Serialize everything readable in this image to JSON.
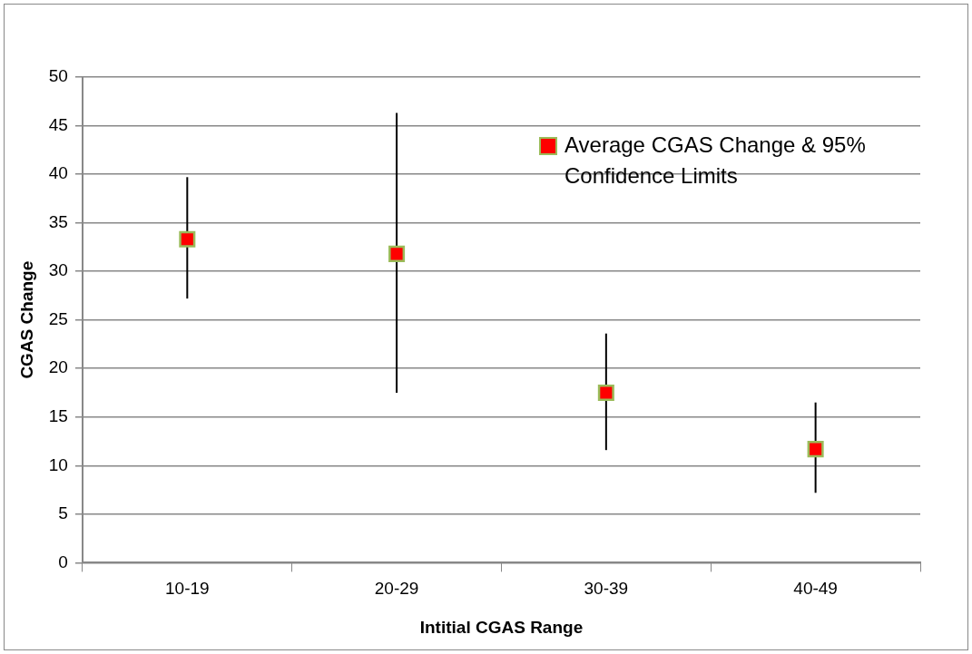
{
  "chart_data": {
    "type": "scatter",
    "xlabel": "Intitial CGAS Range",
    "ylabel": "CGAS Change",
    "categories": [
      "10-19",
      "20-29",
      "30-39",
      "40-49"
    ],
    "series": [
      {
        "name": "Average CGAS Change & 95% Confidence Limits",
        "color": "#ff0000",
        "values": [
          33.3,
          31.8,
          17.5,
          11.7
        ],
        "errors": [
          [
            27.2,
            39.7
          ],
          [
            17.5,
            46.3
          ],
          [
            11.6,
            23.6
          ],
          [
            7.2,
            16.5
          ]
        ]
      }
    ],
    "ylim": [
      0,
      50
    ],
    "yticks": [
      0,
      5,
      10,
      15,
      20,
      25,
      30,
      35,
      40,
      45,
      50
    ],
    "grid": "y",
    "legend": "top right",
    "marker": "square"
  }
}
